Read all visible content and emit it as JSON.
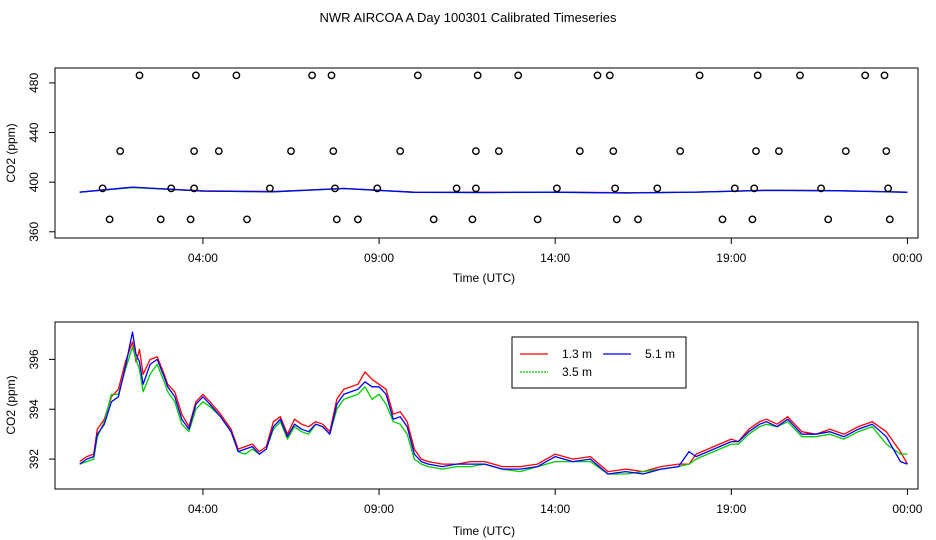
{
  "title": "NWR AIRCOA A  Day 100301  Calibrated Timeseries",
  "chart_data": [
    {
      "type": "scatter",
      "xlabel": "Time (UTC)",
      "ylabel": "CO2 (ppm)",
      "xlim": [
        -0.2,
        24.3
      ],
      "ylim": [
        355,
        492
      ],
      "xticks": [
        4,
        9,
        14,
        19,
        24
      ],
      "xtick_labels": [
        "04:00",
        "09:00",
        "14:00",
        "19:00",
        "00:00"
      ],
      "yticks": [
        360,
        400,
        440,
        480
      ],
      "ytick_labels": [
        "360",
        "400",
        "440",
        "480"
      ],
      "points": [
        [
          1.15,
          395
        ],
        [
          1.35,
          370
        ],
        [
          1.65,
          425
        ],
        [
          2.2,
          486
        ],
        [
          2.8,
          370
        ],
        [
          3.1,
          395
        ],
        [
          3.65,
          370
        ],
        [
          3.75,
          395
        ],
        [
          3.75,
          425
        ],
        [
          3.8,
          486
        ],
        [
          4.45,
          425
        ],
        [
          4.95,
          486
        ],
        [
          5.25,
          370
        ],
        [
          5.9,
          395
        ],
        [
          6.5,
          425
        ],
        [
          7.1,
          486
        ],
        [
          7.65,
          486
        ],
        [
          7.7,
          425
        ],
        [
          7.75,
          395
        ],
        [
          7.8,
          370
        ],
        [
          8.4,
          370
        ],
        [
          8.95,
          395
        ],
        [
          9.6,
          425
        ],
        [
          10.1,
          486
        ],
        [
          10.55,
          370
        ],
        [
          11.2,
          395
        ],
        [
          11.65,
          370
        ],
        [
          11.75,
          395
        ],
        [
          11.75,
          425
        ],
        [
          11.8,
          486
        ],
        [
          12.4,
          425
        ],
        [
          12.95,
          486
        ],
        [
          13.5,
          370
        ],
        [
          14.05,
          395
        ],
        [
          14.7,
          425
        ],
        [
          15.2,
          486
        ],
        [
          15.55,
          486
        ],
        [
          15.65,
          425
        ],
        [
          15.7,
          395
        ],
        [
          15.75,
          370
        ],
        [
          16.35,
          370
        ],
        [
          16.9,
          395
        ],
        [
          17.55,
          425
        ],
        [
          18.1,
          486
        ],
        [
          18.75,
          370
        ],
        [
          19.1,
          395
        ],
        [
          19.6,
          370
        ],
        [
          19.65,
          395
        ],
        [
          19.7,
          425
        ],
        [
          19.75,
          486
        ],
        [
          20.35,
          425
        ],
        [
          20.95,
          486
        ],
        [
          21.55,
          395
        ],
        [
          21.75,
          370
        ],
        [
          22.25,
          425
        ],
        [
          22.8,
          486
        ],
        [
          23.35,
          486
        ],
        [
          23.4,
          425
        ],
        [
          23.45,
          395
        ],
        [
          23.5,
          370
        ]
      ],
      "series": [
        {
          "name": "1.3 m",
          "color": "#ff0000",
          "x": [
            0.5,
            2,
            4,
            6,
            8,
            10,
            12,
            14,
            16,
            18,
            20,
            22,
            24
          ],
          "values": [
            392,
            395.8,
            393,
            392.5,
            395,
            392,
            391.8,
            392,
            391.5,
            392,
            393.5,
            393.2,
            392
          ]
        },
        {
          "name": "3.5 m",
          "color": "#00cc00",
          "x": [
            0.5,
            2,
            4,
            6,
            8,
            10,
            12,
            14,
            16,
            18,
            20,
            22,
            24
          ],
          "values": [
            392,
            395.6,
            392.8,
            392.3,
            394.8,
            391.8,
            391.6,
            391.8,
            391.3,
            391.9,
            393.4,
            393,
            391.9
          ]
        },
        {
          "name": "5.1 m",
          "color": "#0000ff",
          "x": [
            0.5,
            2,
            4,
            6,
            8,
            10,
            12,
            14,
            16,
            18,
            20,
            22,
            24
          ],
          "values": [
            391.9,
            396,
            392.8,
            392.2,
            394.9,
            391.8,
            391.7,
            391.9,
            391.3,
            392,
            393.4,
            393.1,
            391.8
          ]
        }
      ]
    },
    {
      "type": "line",
      "xlabel": "Time (UTC)",
      "ylabel": "CO2 (ppm)",
      "xlim": [
        -0.2,
        24.3
      ],
      "ylim": [
        390.8,
        397.5
      ],
      "xticks": [
        4,
        9,
        14,
        19,
        24
      ],
      "xtick_labels": [
        "04:00",
        "09:00",
        "14:00",
        "19:00",
        "00:00"
      ],
      "yticks": [
        392,
        394,
        396
      ],
      "ytick_labels": [
        "392",
        "394",
        "396"
      ],
      "legend": "top-center",
      "series": [
        {
          "name": "1.3 m",
          "color": "#ff0000",
          "x": [
            0.5,
            0.7,
            0.9,
            1.0,
            1.2,
            1.4,
            1.6,
            1.8,
            2.0,
            2.1,
            2.2,
            2.3,
            2.5,
            2.7,
            2.9,
            3.0,
            3.2,
            3.4,
            3.6,
            3.8,
            4.0,
            4.2,
            4.5,
            4.8,
            5.0,
            5.2,
            5.4,
            5.6,
            5.8,
            6.0,
            6.2,
            6.4,
            6.6,
            6.8,
            7.0,
            7.2,
            7.4,
            7.6,
            7.8,
            8.0,
            8.2,
            8.4,
            8.6,
            8.8,
            9.0,
            9.2,
            9.4,
            9.6,
            9.8,
            10.0,
            10.2,
            10.4,
            10.8,
            11.2,
            11.6,
            12.0,
            12.5,
            13.0,
            13.5,
            14.0,
            14.5,
            15.0,
            15.5,
            16.0,
            16.5,
            17.0,
            17.5,
            17.8,
            18.0,
            18.5,
            19.0,
            19.2,
            19.5,
            19.8,
            20.0,
            20.3,
            20.6,
            21.0,
            21.4,
            21.8,
            22.2,
            22.6,
            23.0,
            23.4,
            23.8,
            24.0
          ],
          "values": [
            391.9,
            392.1,
            392.2,
            393.2,
            393.6,
            394.5,
            394.8,
            395.9,
            396.7,
            395.9,
            396.4,
            395.4,
            396.0,
            396.1,
            395.4,
            395.0,
            394.7,
            393.8,
            393.3,
            394.3,
            394.6,
            394.3,
            393.8,
            393.2,
            392.4,
            392.5,
            392.6,
            392.3,
            392.5,
            393.5,
            393.7,
            393.0,
            393.6,
            393.4,
            393.3,
            393.5,
            393.4,
            393.1,
            394.4,
            394.8,
            394.9,
            395.0,
            395.5,
            395.2,
            395.0,
            394.8,
            393.8,
            393.9,
            393.5,
            392.4,
            392.0,
            391.9,
            391.8,
            391.8,
            391.9,
            391.9,
            391.7,
            391.7,
            391.8,
            392.2,
            392.0,
            392.1,
            391.5,
            391.6,
            391.5,
            391.7,
            391.8,
            391.8,
            392.2,
            392.5,
            392.8,
            392.7,
            393.2,
            393.5,
            393.6,
            393.4,
            393.7,
            393.1,
            393.0,
            393.2,
            393.0,
            393.3,
            393.5,
            393.1,
            392.3,
            391.8
          ]
        },
        {
          "name": "3.5 m",
          "color": "#00cc00",
          "x": [
            0.5,
            0.7,
            0.9,
            1.0,
            1.2,
            1.4,
            1.6,
            1.8,
            2.0,
            2.1,
            2.2,
            2.3,
            2.5,
            2.7,
            2.9,
            3.0,
            3.2,
            3.4,
            3.6,
            3.8,
            4.0,
            4.2,
            4.5,
            4.8,
            5.0,
            5.2,
            5.4,
            5.6,
            5.8,
            6.0,
            6.2,
            6.4,
            6.6,
            6.8,
            7.0,
            7.2,
            7.4,
            7.6,
            7.8,
            8.0,
            8.2,
            8.4,
            8.6,
            8.8,
            9.0,
            9.2,
            9.4,
            9.6,
            9.8,
            10.0,
            10.2,
            10.4,
            10.8,
            11.2,
            11.6,
            12.0,
            12.5,
            13.0,
            13.5,
            14.0,
            14.5,
            15.0,
            15.5,
            16.0,
            16.5,
            17.0,
            17.5,
            17.8,
            18.0,
            18.5,
            19.0,
            19.2,
            19.5,
            19.8,
            20.0,
            20.3,
            20.6,
            21.0,
            21.4,
            21.8,
            22.2,
            22.6,
            23.0,
            23.4,
            23.8,
            24.0
          ],
          "values": [
            391.8,
            391.9,
            392.0,
            392.9,
            393.5,
            394.6,
            394.6,
            395.6,
            396.5,
            396.0,
            395.6,
            394.7,
            395.4,
            395.8,
            395.1,
            394.7,
            394.3,
            393.4,
            393.1,
            394.0,
            394.3,
            394.1,
            393.7,
            393.1,
            392.3,
            392.2,
            392.4,
            392.2,
            392.4,
            393.2,
            393.5,
            392.8,
            393.3,
            393.1,
            393.0,
            393.4,
            393.3,
            393.0,
            394.0,
            394.4,
            394.5,
            394.6,
            394.9,
            394.4,
            394.6,
            394.2,
            393.5,
            393.4,
            393.0,
            392.0,
            391.8,
            391.7,
            391.6,
            391.7,
            391.7,
            391.8,
            391.6,
            391.5,
            391.7,
            391.9,
            391.9,
            391.9,
            391.4,
            391.4,
            391.5,
            391.6,
            391.7,
            391.8,
            392.0,
            392.3,
            392.6,
            392.6,
            393.0,
            393.3,
            393.4,
            393.3,
            393.5,
            392.9,
            392.9,
            393.0,
            392.8,
            393.1,
            393.3,
            392.6,
            392.2,
            392.2
          ]
        },
        {
          "name": "5.1 m",
          "color": "#0000ff",
          "x": [
            0.5,
            0.7,
            0.9,
            1.0,
            1.2,
            1.4,
            1.6,
            1.8,
            2.0,
            2.1,
            2.2,
            2.3,
            2.5,
            2.7,
            2.9,
            3.0,
            3.2,
            3.4,
            3.6,
            3.8,
            4.0,
            4.2,
            4.5,
            4.8,
            5.0,
            5.2,
            5.4,
            5.6,
            5.8,
            6.0,
            6.2,
            6.4,
            6.6,
            6.8,
            7.0,
            7.2,
            7.4,
            7.6,
            7.8,
            8.0,
            8.2,
            8.4,
            8.6,
            8.8,
            9.0,
            9.2,
            9.4,
            9.6,
            9.8,
            10.0,
            10.2,
            10.4,
            10.8,
            11.2,
            11.6,
            12.0,
            12.5,
            13.0,
            13.5,
            14.0,
            14.5,
            15.0,
            15.5,
            16.0,
            16.5,
            17.0,
            17.5,
            17.8,
            18.0,
            18.5,
            19.0,
            19.2,
            19.5,
            19.8,
            20.0,
            20.3,
            20.6,
            21.0,
            21.4,
            21.8,
            22.2,
            22.6,
            23.0,
            23.4,
            23.8,
            24.0
          ],
          "values": [
            391.8,
            392.0,
            392.1,
            393.0,
            393.4,
            394.3,
            394.5,
            395.7,
            397.1,
            396.2,
            395.9,
            395.0,
            395.8,
            396.0,
            395.3,
            394.9,
            394.5,
            393.6,
            393.2,
            394.2,
            394.5,
            394.2,
            393.7,
            393.1,
            392.3,
            392.4,
            392.5,
            392.2,
            392.4,
            393.3,
            393.6,
            392.9,
            393.4,
            393.2,
            393.1,
            393.4,
            393.3,
            393.0,
            394.2,
            394.6,
            394.7,
            394.8,
            395.1,
            394.9,
            394.9,
            394.6,
            393.6,
            393.7,
            393.3,
            392.2,
            391.9,
            391.8,
            391.7,
            391.8,
            391.8,
            391.8,
            391.6,
            391.6,
            391.7,
            392.1,
            391.9,
            392.0,
            391.4,
            391.5,
            391.4,
            391.6,
            391.7,
            392.3,
            392.1,
            392.4,
            392.7,
            392.7,
            393.1,
            393.4,
            393.5,
            393.3,
            393.6,
            393.0,
            393.0,
            393.1,
            392.9,
            393.2,
            393.4,
            392.9,
            391.9,
            391.8
          ]
        }
      ]
    }
  ]
}
